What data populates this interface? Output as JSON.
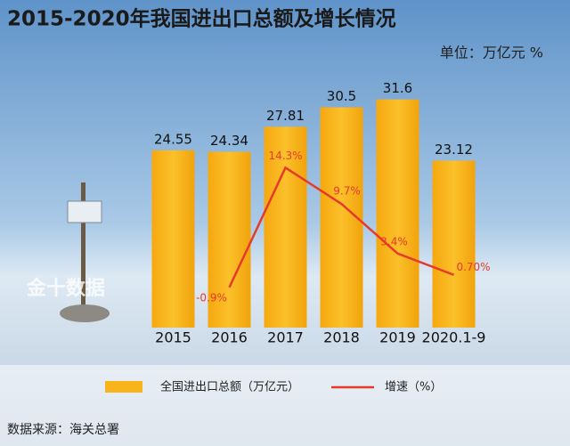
{
  "chart_data": {
    "type": "bar-line",
    "title": "2015-2020年我国进出口总额及增长情况",
    "unit_note": "单位：万亿元    %",
    "source": "数据来源：海关总署",
    "watermark": "金十数据",
    "categories": [
      "2015",
      "2016",
      "2017",
      "2018",
      "2019",
      "2020.1-9"
    ],
    "series": [
      {
        "name": "全国进出口总额（万亿元）",
        "color": "#f8b41b",
        "values": [
          24.55,
          24.34,
          27.81,
          30.5,
          31.6,
          23.12
        ]
      },
      {
        "name": "增速（%）",
        "color": "#e63a2a",
        "axis": "y2",
        "values": [
          null,
          -0.9,
          14.3,
          9.7,
          3.4,
          0.7
        ],
        "value_labels": [
          null,
          "-0.9%",
          "14.3%",
          "9.7%",
          "3.4%",
          "0.70%"
        ]
      }
    ],
    "ylim": [
      0,
      36
    ],
    "y2lim": [
      -6,
      27
    ]
  }
}
